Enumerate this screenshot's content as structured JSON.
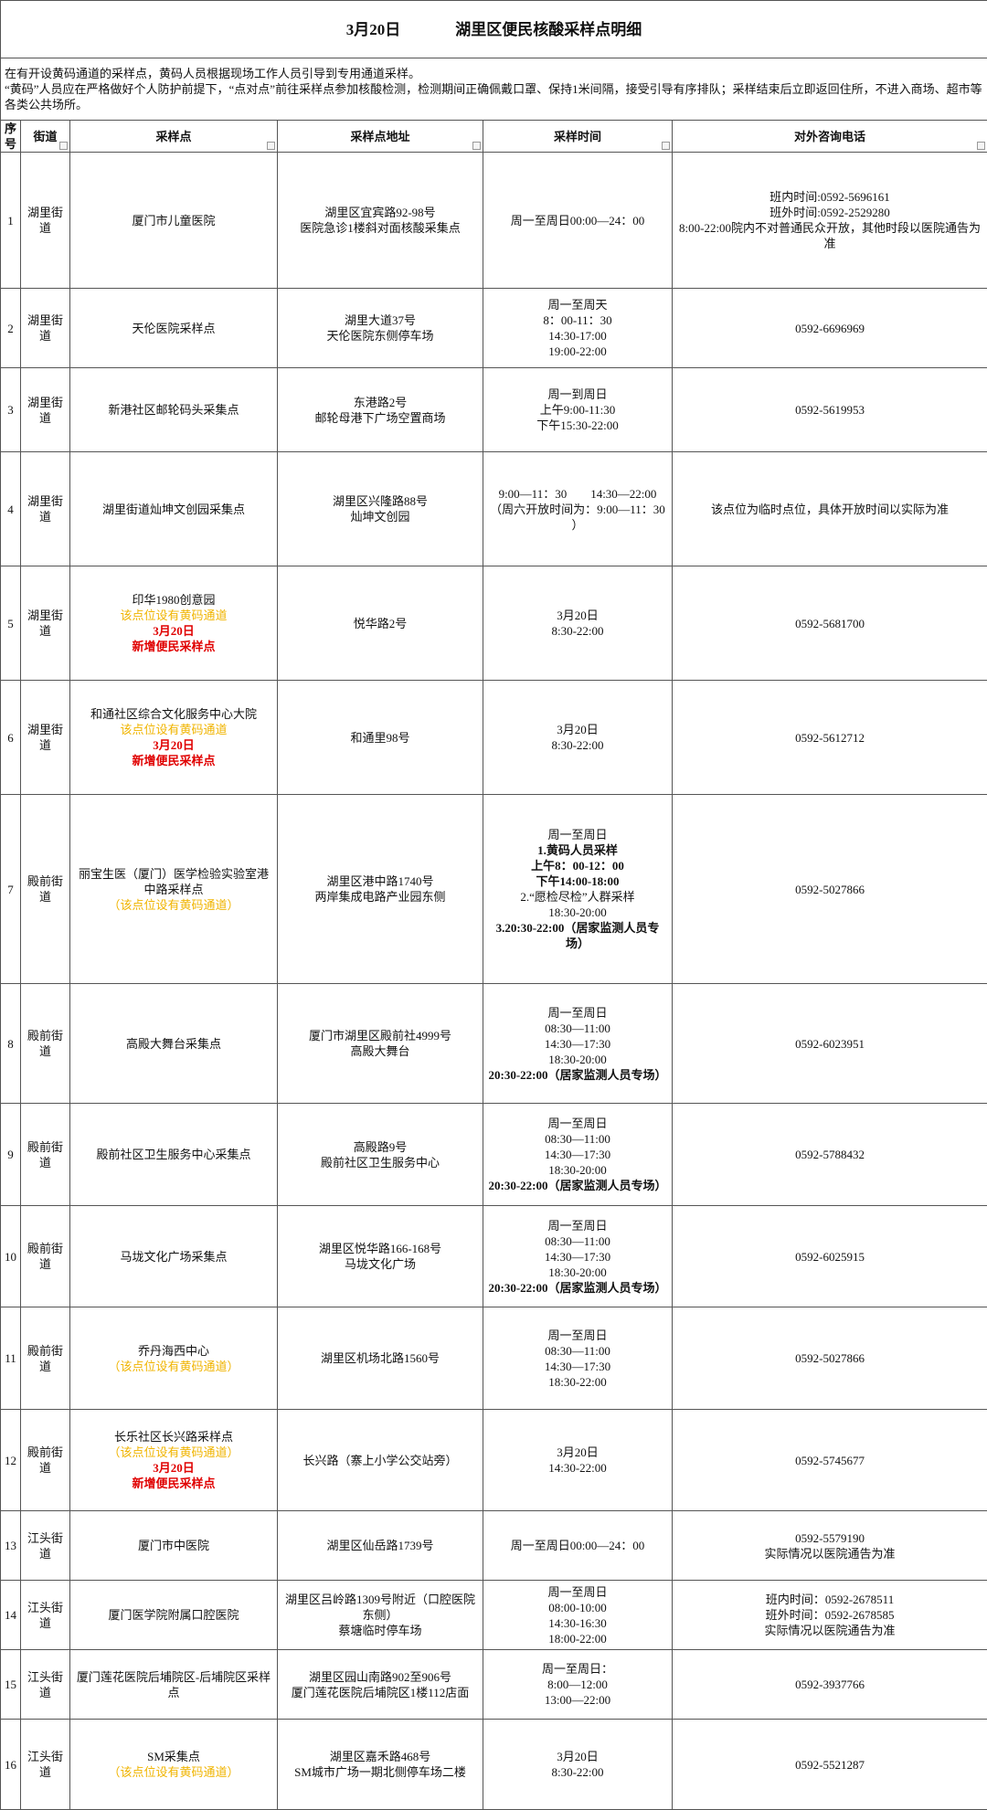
{
  "header": {
    "date": "3月20日",
    "title": "湖里区便民核酸采样点明细"
  },
  "notice": [
    "在有开设黄码通道的采样点，黄码人员根据现场工作人员引导到专用通道采样。",
    "“黄码”人员应在严格做好个人防护前提下，“点对点”前往采样点参加核酸检测，检测期间正确佩戴口罩、保持1米间隔，接受引导有序排队；采样结束后立即返回住所，不进入商场、超市等各类公共场所。"
  ],
  "table": {
    "columns": [
      "序号",
      "街道",
      "采样点",
      "采样点地址",
      "采样时间",
      "对外咨询电话"
    ],
    "rows": [
      {
        "no": "1",
        "street": "湖里街道",
        "site": [
          "厦门市儿童医院"
        ],
        "address": [
          "湖里区宜宾路92-98号",
          "医院急诊1楼斜对面核酸采集点"
        ],
        "time": [
          "周一至周日00:00—24：00"
        ],
        "phone": [
          "班内时间:0592-5696161",
          "班外时间:0592-2529280",
          "8:00-22:00院内不对普通民众开放，其他时段以医院通告为准"
        ]
      },
      {
        "no": "2",
        "street": "湖里街道",
        "site": [
          "天伦医院采样点"
        ],
        "address": [
          "湖里大道37号",
          "天伦医院东侧停车场"
        ],
        "time": [
          "周一至周天",
          "8：00-11：30",
          "14:30-17:00",
          "19:00-22:00"
        ],
        "phone": [
          "0592-6696969"
        ]
      },
      {
        "no": "3",
        "street": "湖里街道",
        "site": [
          "新港社区邮轮码头采集点"
        ],
        "address": [
          "东港路2号",
          "邮轮母港下广场空置商场"
        ],
        "time": [
          "周一到周日",
          "上午9:00-11:30",
          "下午15:30-22:00"
        ],
        "phone": [
          "0592-5619953"
        ]
      },
      {
        "no": "4",
        "street": "湖里街道",
        "site": [
          "湖里街道灿坤文创园采集点"
        ],
        "address": [
          "湖里区兴隆路88号",
          "灿坤文创园"
        ],
        "time": [
          "9:00—11：30　　14:30—22:00",
          "（周六开放时间为：9:00—11：30 ）"
        ],
        "phone": [
          "该点位为临时点位，具体开放时间以实际为准"
        ]
      },
      {
        "no": "5",
        "street": "湖里街道",
        "site": [
          "印华1980创意园",
          {
            "text": "该点位设有黄码通道",
            "color": "#f0b400"
          },
          {
            "text": "3月20日",
            "color": "#e00000",
            "bold": true
          },
          {
            "text": "新增便民采样点",
            "color": "#e00000",
            "bold": true
          }
        ],
        "address": [
          "悦华路2号"
        ],
        "time": [
          "3月20日",
          "8:30-22:00"
        ],
        "phone": [
          "0592-5681700"
        ]
      },
      {
        "no": "6",
        "street": "湖里街道",
        "site": [
          "和通社区综合文化服务中心大院",
          {
            "text": "该点位设有黄码通道",
            "color": "#f0b400"
          },
          {
            "text": "3月20日",
            "color": "#e00000",
            "bold": true
          },
          {
            "text": "新增便民采样点",
            "color": "#e00000",
            "bold": true
          }
        ],
        "address": [
          "和通里98号"
        ],
        "time": [
          "3月20日",
          "8:30-22:00"
        ],
        "phone": [
          "0592-5612712"
        ]
      },
      {
        "no": "7",
        "street": "殿前街道",
        "site": [
          "丽宝生医（厦门）医学检验实验室港中路采样点",
          {
            "text": "（该点位设有黄码通道）",
            "color": "#f0b400"
          }
        ],
        "address": [
          "湖里区港中路1740号",
          "两岸集成电路产业园东侧"
        ],
        "time": [
          "周一至周日",
          {
            "text": "1.黄码人员采样",
            "bold": true
          },
          {
            "text": "上午8：00-12：00",
            "bold": true
          },
          {
            "text": "下午14:00-18:00",
            "bold": true
          },
          "2.“愿检尽检”人群采样",
          "18:30-20:00",
          {
            "text": "3.20:30-22:00（居家监测人员专场）",
            "bold": true
          }
        ],
        "phone": [
          "0592-5027866"
        ]
      },
      {
        "no": "8",
        "street": "殿前街道",
        "site": [
          "高殿大舞台采集点"
        ],
        "address": [
          "厦门市湖里区殿前社4999号",
          "高殿大舞台"
        ],
        "time": [
          "周一至周日",
          "08:30—11:00",
          "14:30—17:30",
          "18:30-20:00",
          {
            "text": "20:30-22:00（居家监测人员专场）",
            "bold": true
          }
        ],
        "phone": [
          "0592-6023951"
        ]
      },
      {
        "no": "9",
        "street": "殿前街道",
        "site": [
          "殿前社区卫生服务中心采集点"
        ],
        "address": [
          "高殿路9号",
          "殿前社区卫生服务中心"
        ],
        "time": [
          "周一至周日",
          "08:30—11:00",
          "14:30—17:30",
          "18:30-20:00",
          {
            "text": "20:30-22:00（居家监测人员专场）",
            "bold": true
          }
        ],
        "phone": [
          "0592-5788432"
        ]
      },
      {
        "no": "10",
        "street": "殿前街道",
        "site": [
          "马垅文化广场采集点"
        ],
        "address": [
          "湖里区悦华路166-168号",
          "马垅文化广场"
        ],
        "time": [
          "周一至周日",
          "08:30—11:00",
          "14:30—17:30",
          "18:30-20:00",
          {
            "text": "20:30-22:00（居家监测人员专场）",
            "bold": true
          }
        ],
        "phone": [
          "0592-6025915"
        ]
      },
      {
        "no": "11",
        "street": "殿前街道",
        "site": [
          "乔丹海西中心",
          {
            "text": "（该点位设有黄码通道）",
            "color": "#f0b400"
          }
        ],
        "address": [
          "湖里区机场北路1560号"
        ],
        "time": [
          "周一至周日",
          "08:30—11:00",
          "14:30—17:30",
          "18:30-22:00"
        ],
        "phone": [
          "0592-5027866"
        ]
      },
      {
        "no": "12",
        "street": "殿前街道",
        "site": [
          "长乐社区长兴路采样点",
          {
            "text": "（该点位设有黄码通道）",
            "color": "#f0b400"
          },
          {
            "text": "3月20日",
            "color": "#e00000",
            "bold": true
          },
          {
            "text": "新增便民采样点",
            "color": "#e00000",
            "bold": true
          }
        ],
        "address": [
          "长兴路（寨上小学公交站旁）"
        ],
        "time": [
          "3月20日",
          "14:30-22:00"
        ],
        "phone": [
          "0592-5745677"
        ]
      },
      {
        "no": "13",
        "street": "江头街道",
        "site": [
          "厦门市中医院"
        ],
        "address": [
          "湖里区仙岳路1739号"
        ],
        "time": [
          "周一至周日00:00—24：00"
        ],
        "phone": [
          "0592-5579190",
          "实际情况以医院通告为准"
        ]
      },
      {
        "no": "14",
        "street": "江头街道",
        "site": [
          "厦门医学院附属口腔医院"
        ],
        "address": [
          "湖里区吕岭路1309号附近（口腔医院东侧）",
          "蔡塘临时停车场"
        ],
        "time": [
          "周一至周日",
          "08:00-10:00",
          "14:30-16:30",
          "18:00-22:00"
        ],
        "phone": [
          "班内时间：0592-2678511",
          "班外时间：0592-2678585",
          "实际情况以医院通告为准"
        ]
      },
      {
        "no": "15",
        "street": "江头街道",
        "site": [
          "厦门莲花医院后埔院区-后埔院区采样点"
        ],
        "address": [
          "湖里区园山南路902至906号",
          "厦门莲花医院后埔院区1楼112店面"
        ],
        "time": [
          "周一至周日：",
          "8:00—12:00",
          "13:00—22:00"
        ],
        "phone": [
          "0592-3937766"
        ]
      },
      {
        "no": "16",
        "street": "江头街道",
        "site": [
          "SM采集点",
          {
            "text": "（该点位设有黄码通道）",
            "color": "#f0b400"
          }
        ],
        "address": [
          "湖里区嘉禾路468号",
          "SM城市广场一期北侧停车场二楼"
        ],
        "time": [
          "3月20日",
          "8:30-22:00"
        ],
        "phone": [
          "0592-5521287"
        ]
      }
    ]
  }
}
